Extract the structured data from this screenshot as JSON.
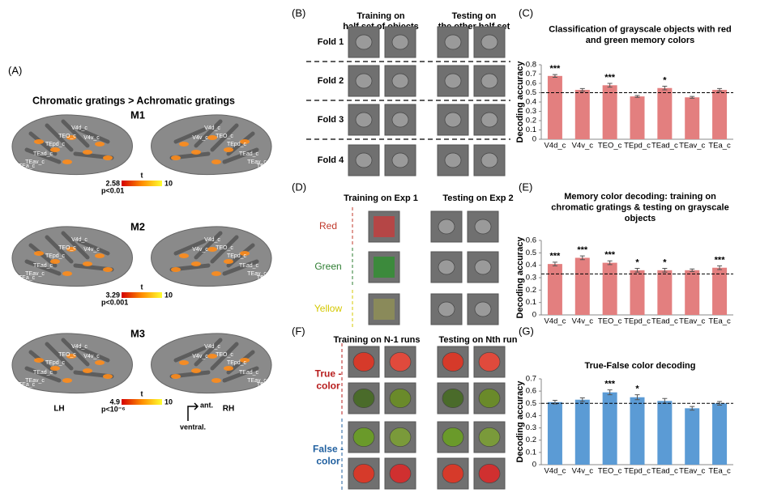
{
  "panel_a": {
    "label": "(A)",
    "title": "Chromatic gratings > Achromatic gratings",
    "rois": [
      "V4d_c",
      "V4v_c",
      "TEO_c",
      "TEpd_c",
      "TEad_c",
      "TEav_c",
      "TEa_c"
    ],
    "monkeys": [
      {
        "name": "M1",
        "t_min": 2.58,
        "t_label": "t",
        "t_max": 10,
        "p": "p<0.01"
      },
      {
        "name": "M2",
        "t_min": 3.29,
        "t_label": "t",
        "t_max": 10,
        "p": "p<0.001"
      },
      {
        "name": "M3",
        "t_min": 4.9,
        "t_label": "t",
        "t_max": 10,
        "p": "p<10⁻⁶"
      }
    ],
    "hemispheres": [
      "LH",
      "RH"
    ],
    "orientation": [
      "ant.",
      "ventral."
    ]
  },
  "panel_b": {
    "label": "(B)",
    "train_header": [
      "Training on",
      "half set of objects"
    ],
    "test_header": [
      "Testing on",
      "the other half set"
    ],
    "folds": [
      "Fold 1",
      "Fold 2",
      "Fold 3",
      "Fold 4"
    ]
  },
  "panel_d": {
    "label": "(D)",
    "train_header": "Training on Exp 1",
    "test_header": "Testing on Exp 2",
    "colors": [
      "Red",
      "Green",
      "Yellow"
    ]
  },
  "panel_f": {
    "label": "(F)",
    "train_header": "Training on N-1 runs",
    "test_header": "Testing on Nth run",
    "conditions": [
      [
        "True -",
        "color"
      ],
      [
        "False -",
        "color"
      ]
    ]
  },
  "chart_data": [
    {
      "type": "bar",
      "panel_label": "(C)",
      "title": [
        "Classification of grayscale objects with red",
        "and green memory colors"
      ],
      "y_label": "Decoding accuracy",
      "categories": [
        "V4d_c",
        "V4v_c",
        "TEO_c",
        "TEpd_c",
        "TEad_c",
        "TEav_c",
        "TEa_c"
      ],
      "values": [
        0.68,
        0.53,
        0.58,
        0.46,
        0.55,
        0.45,
        0.53
      ],
      "errors": [
        0.015,
        0.015,
        0.02,
        0.01,
        0.02,
        0.01,
        0.015
      ],
      "annotations": [
        "***",
        null,
        "***",
        null,
        "*",
        null,
        null
      ],
      "chance": 0.5,
      "color": "#e37f7f",
      "ylim": [
        0,
        0.8
      ],
      "yticks": [
        0,
        0.1,
        0.2,
        0.3,
        0.4,
        0.5,
        0.6,
        0.7,
        0.8
      ]
    },
    {
      "type": "bar",
      "panel_label": "(E)",
      "title": [
        "Memory color decoding: training on",
        "chromatic gratings & testing on grayscale",
        "objects"
      ],
      "y_label": "Decoding accuracy",
      "categories": [
        "V4d_c",
        "V4v_c",
        "TEO_c",
        "TEpd_c",
        "TEad_c",
        "TEav_c",
        "TEa_c"
      ],
      "values": [
        0.41,
        0.46,
        0.42,
        0.36,
        0.36,
        0.36,
        0.38
      ],
      "errors": [
        0.015,
        0.015,
        0.015,
        0.015,
        0.015,
        0.01,
        0.015
      ],
      "annotations": [
        "***",
        "***",
        "***",
        "*",
        "*",
        null,
        "***"
      ],
      "chance": 0.33,
      "color": "#e37f7f",
      "ylim": [
        0,
        0.6
      ],
      "yticks": [
        0,
        0.1,
        0.2,
        0.3,
        0.4,
        0.5,
        0.6
      ]
    },
    {
      "type": "bar",
      "panel_label": "(G)",
      "title": [
        "True-False color decoding"
      ],
      "y_label": "Decoding accuracy",
      "categories": [
        "V4d_c",
        "V4v_c",
        "TEO_c",
        "TEpd_c",
        "TEad_c",
        "TEav_c",
        "TEa_c"
      ],
      "values": [
        0.51,
        0.53,
        0.59,
        0.55,
        0.52,
        0.46,
        0.5
      ],
      "errors": [
        0.015,
        0.015,
        0.02,
        0.02,
        0.02,
        0.015,
        0.015
      ],
      "annotations": [
        null,
        null,
        "***",
        "*",
        null,
        null,
        null
      ],
      "chance": 0.5,
      "color": "#5b9bd5",
      "ylim": [
        0,
        0.7
      ],
      "yticks": [
        0,
        0.1,
        0.2,
        0.3,
        0.4,
        0.5,
        0.6,
        0.7
      ]
    }
  ]
}
